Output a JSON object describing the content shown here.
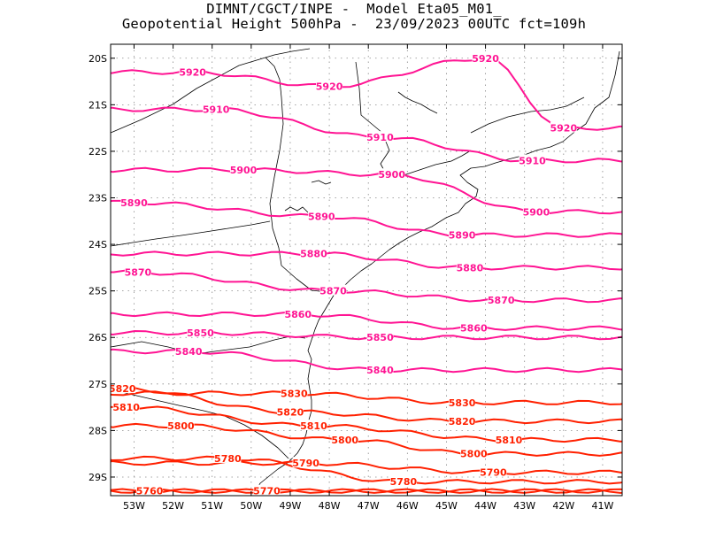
{
  "title": {
    "line1": "DIMNT/CGCT/INPE -  Model Eta05_M01_",
    "line2": "Geopotential Height 500hPa -  23/09/2023 00UTC fct=109h"
  },
  "axes": {
    "lat_ticks": [
      "20S",
      "21S",
      "22S",
      "23S",
      "24S",
      "25S",
      "26S",
      "27S",
      "28S",
      "29S"
    ],
    "lon_ticks": [
      "53W",
      "52W",
      "51W",
      "50W",
      "49W",
      "48W",
      "47W",
      "46W",
      "45W",
      "44W",
      "43W",
      "42W",
      "41W"
    ]
  },
  "colors": {
    "contour_high": "#ff1493",
    "contour_low": "#ff2000",
    "coastline": "#000000",
    "grid": "#888888"
  },
  "chart_data": {
    "type": "contour_map",
    "variable": "Geopotential Height 500hPa",
    "grid": true,
    "lon_range": [
      "53.6W",
      "40.5W"
    ],
    "lat_range": [
      "19.7S",
      "29.4S"
    ],
    "contour_labels": [
      {
        "value": "5920",
        "lon": -51.5,
        "lat": -20.3
      },
      {
        "value": "5920",
        "lon": -48.0,
        "lat": -20.6
      },
      {
        "value": "5920",
        "lon": -44.0,
        "lat": -20.0
      },
      {
        "value": "5920",
        "lon": -42.0,
        "lat": -21.5
      },
      {
        "value": "5910",
        "lon": -50.9,
        "lat": -21.1
      },
      {
        "value": "5910",
        "lon": -46.7,
        "lat": -21.7
      },
      {
        "value": "5910",
        "lon": -42.8,
        "lat": -22.2
      },
      {
        "value": "5900",
        "lon": -50.2,
        "lat": -22.4
      },
      {
        "value": "5900",
        "lon": -46.4,
        "lat": -22.5
      },
      {
        "value": "5900",
        "lon": -42.7,
        "lat": -23.3
      },
      {
        "value": "5890",
        "lon": -53.0,
        "lat": -23.1
      },
      {
        "value": "5890",
        "lon": -48.2,
        "lat": -23.4
      },
      {
        "value": "5890",
        "lon": -44.6,
        "lat": -23.8
      },
      {
        "value": "5880",
        "lon": -48.4,
        "lat": -24.2
      },
      {
        "value": "5880",
        "lon": -44.4,
        "lat": -24.5
      },
      {
        "value": "5870",
        "lon": -52.9,
        "lat": -24.6
      },
      {
        "value": "5870",
        "lon": -47.9,
        "lat": -25.0
      },
      {
        "value": "5870",
        "lon": -43.6,
        "lat": -25.2
      },
      {
        "value": "5860",
        "lon": -48.8,
        "lat": -25.5
      },
      {
        "value": "5860",
        "lon": -44.3,
        "lat": -25.8
      },
      {
        "value": "5850",
        "lon": -51.3,
        "lat": -25.9
      },
      {
        "value": "5850",
        "lon": -46.7,
        "lat": -26.0
      },
      {
        "value": "5840",
        "lon": -51.6,
        "lat": -26.3
      },
      {
        "value": "5840",
        "lon": -46.7,
        "lat": -26.7
      },
      {
        "value": "5830",
        "lon": -48.9,
        "lat": -27.2
      },
      {
        "value": "5830",
        "lon": -44.6,
        "lat": -27.4
      },
      {
        "value": "5820",
        "lon": -53.3,
        "lat": -27.1
      },
      {
        "value": "5820",
        "lon": -49.0,
        "lat": -27.6
      },
      {
        "value": "5820",
        "lon": -44.6,
        "lat": -27.8
      },
      {
        "value": "5810",
        "lon": -53.2,
        "lat": -27.5
      },
      {
        "value": "5810",
        "lon": -48.4,
        "lat": -27.9
      },
      {
        "value": "5810",
        "lon": -43.4,
        "lat": -28.2
      },
      {
        "value": "5800",
        "lon": -51.8,
        "lat": -27.9
      },
      {
        "value": "5800",
        "lon": -47.6,
        "lat": -28.2
      },
      {
        "value": "5800",
        "lon": -44.3,
        "lat": -28.5
      },
      {
        "value": "5790",
        "lon": -48.6,
        "lat": -28.7
      },
      {
        "value": "5790",
        "lon": -43.8,
        "lat": -28.9
      },
      {
        "value": "5780",
        "lon": -50.6,
        "lat": -28.6
      },
      {
        "value": "5780",
        "lon": -46.1,
        "lat": -29.1
      },
      {
        "value": "5770",
        "lon": -49.6,
        "lat": -29.3
      },
      {
        "value": "5760",
        "lon": -52.6,
        "lat": -29.3
      }
    ]
  }
}
